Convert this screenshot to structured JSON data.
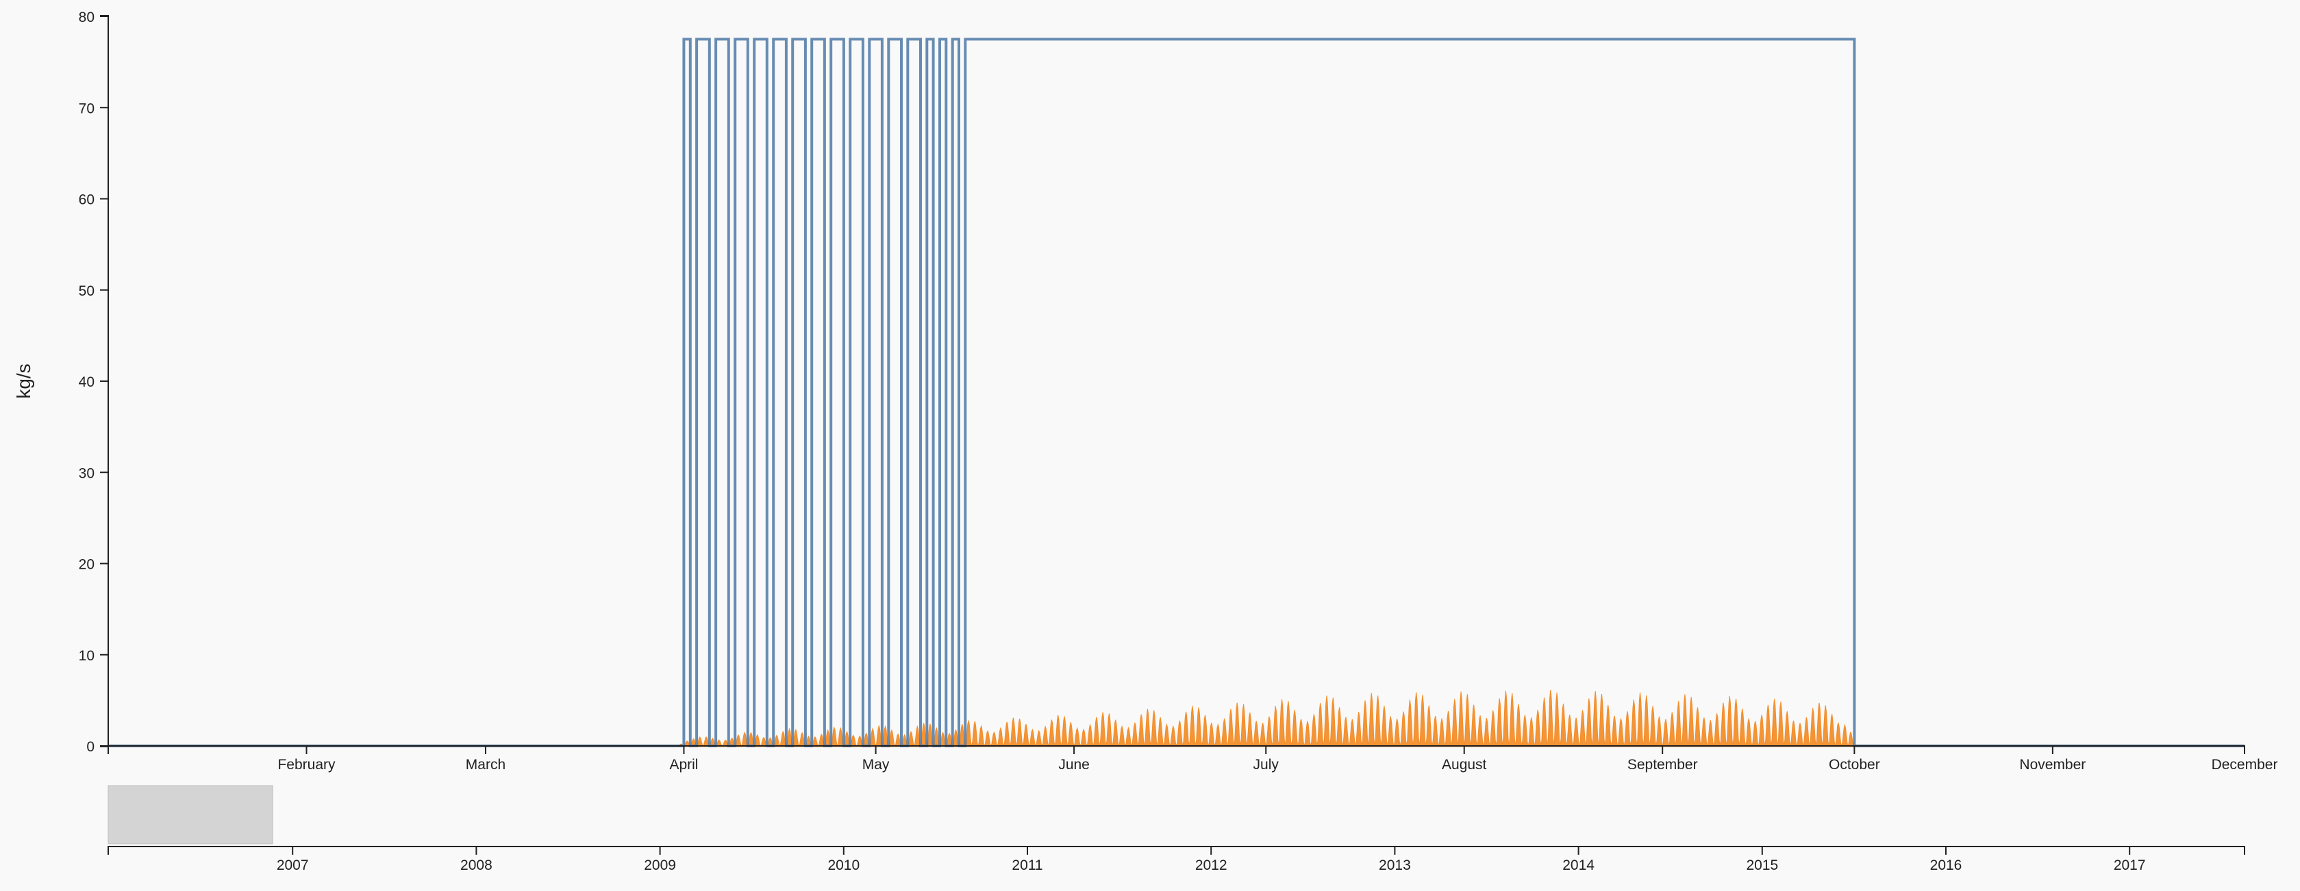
{
  "chart_data": {
    "type": "line",
    "title": "",
    "ylabel": "kg/s",
    "xlabel": "",
    "ylim": [
      0,
      80
    ],
    "y_ticks": [
      0,
      10,
      20,
      30,
      40,
      50,
      60,
      70,
      80
    ],
    "x_domain": [
      "2006-01-01",
      "2006-12-01"
    ],
    "x_ticks": [
      {
        "label": "February",
        "date": "2006-02-01"
      },
      {
        "label": "March",
        "date": "2006-03-01"
      },
      {
        "label": "April",
        "date": "2006-04-01"
      },
      {
        "label": "May",
        "date": "2006-05-01"
      },
      {
        "label": "June",
        "date": "2006-06-01"
      },
      {
        "label": "July",
        "date": "2006-07-01"
      },
      {
        "label": "August",
        "date": "2006-08-01"
      },
      {
        "label": "September",
        "date": "2006-09-01"
      },
      {
        "label": "October",
        "date": "2006-10-01"
      },
      {
        "label": "November",
        "date": "2006-11-01"
      },
      {
        "label": "December",
        "date": "2006-12-01"
      }
    ],
    "series": [
      {
        "color": "#4e79a7",
        "style": "step",
        "high_value": 77.5,
        "low_value": 0,
        "points": [
          [
            "2006-01-01",
            0
          ],
          [
            "2006-04-01",
            0
          ],
          [
            "2006-04-01",
            77.5
          ],
          [
            "2006-04-02",
            77.5
          ],
          [
            "2006-04-02",
            0
          ],
          [
            "2006-04-03",
            0
          ],
          [
            "2006-04-03",
            77.5
          ],
          [
            "2006-04-05",
            77.5
          ],
          [
            "2006-04-05",
            0
          ],
          [
            "2006-04-06",
            0
          ],
          [
            "2006-04-06",
            77.5
          ],
          [
            "2006-04-08",
            77.5
          ],
          [
            "2006-04-08",
            0
          ],
          [
            "2006-04-09",
            0
          ],
          [
            "2006-04-09",
            77.5
          ],
          [
            "2006-04-11",
            77.5
          ],
          [
            "2006-04-11",
            0
          ],
          [
            "2006-04-12",
            0
          ],
          [
            "2006-04-12",
            77.5
          ],
          [
            "2006-04-14",
            77.5
          ],
          [
            "2006-04-14",
            0
          ],
          [
            "2006-04-15",
            0
          ],
          [
            "2006-04-15",
            77.5
          ],
          [
            "2006-04-17",
            77.5
          ],
          [
            "2006-04-17",
            0
          ],
          [
            "2006-04-18",
            0
          ],
          [
            "2006-04-18",
            77.5
          ],
          [
            "2006-04-20",
            77.5
          ],
          [
            "2006-04-20",
            0
          ],
          [
            "2006-04-21",
            0
          ],
          [
            "2006-04-21",
            77.5
          ],
          [
            "2006-04-23",
            77.5
          ],
          [
            "2006-04-23",
            0
          ],
          [
            "2006-04-24",
            0
          ],
          [
            "2006-04-24",
            77.5
          ],
          [
            "2006-04-26",
            77.5
          ],
          [
            "2006-04-26",
            0
          ],
          [
            "2006-04-27",
            0
          ],
          [
            "2006-04-27",
            77.5
          ],
          [
            "2006-04-29",
            77.5
          ],
          [
            "2006-04-29",
            0
          ],
          [
            "2006-04-30",
            0
          ],
          [
            "2006-04-30",
            77.5
          ],
          [
            "2006-05-02",
            77.5
          ],
          [
            "2006-05-02",
            0
          ],
          [
            "2006-05-03",
            0
          ],
          [
            "2006-05-03",
            77.5
          ],
          [
            "2006-05-05",
            77.5
          ],
          [
            "2006-05-05",
            0
          ],
          [
            "2006-05-06",
            0
          ],
          [
            "2006-05-06",
            77.5
          ],
          [
            "2006-05-08",
            77.5
          ],
          [
            "2006-05-08",
            0
          ],
          [
            "2006-05-09",
            0
          ],
          [
            "2006-05-09",
            77.5
          ],
          [
            "2006-05-10",
            77.5
          ],
          [
            "2006-05-10",
            0
          ],
          [
            "2006-05-11",
            0
          ],
          [
            "2006-05-11",
            77.5
          ],
          [
            "2006-05-12",
            77.5
          ],
          [
            "2006-05-12",
            0
          ],
          [
            "2006-05-13",
            0
          ],
          [
            "2006-05-13",
            77.5
          ],
          [
            "2006-05-14",
            77.5
          ],
          [
            "2006-05-14",
            0
          ],
          [
            "2006-05-15",
            0
          ],
          [
            "2006-05-15",
            77.5
          ],
          [
            "2006-10-01",
            77.5
          ],
          [
            "2006-10-01",
            0
          ],
          [
            "2006-12-01",
            0
          ]
        ]
      },
      {
        "color": "#f28e2b",
        "style": "area",
        "amplitude_profile": [
          [
            "2006-01-01",
            0
          ],
          [
            "2006-03-31",
            0
          ],
          [
            "2006-04-01",
            0.8
          ],
          [
            "2006-04-15",
            1.8
          ],
          [
            "2006-05-01",
            2.2
          ],
          [
            "2006-05-15",
            2.8
          ],
          [
            "2006-06-01",
            3.5
          ],
          [
            "2006-06-15",
            4.2
          ],
          [
            "2006-07-01",
            5.0
          ],
          [
            "2006-07-15",
            5.8
          ],
          [
            "2006-08-01",
            6.0
          ],
          [
            "2006-08-15",
            6.2
          ],
          [
            "2006-09-01",
            5.8
          ],
          [
            "2006-09-15",
            5.4
          ],
          [
            "2006-09-30",
            4.5
          ],
          [
            "2006-10-01",
            0
          ],
          [
            "2006-12-01",
            0
          ]
        ]
      }
    ]
  },
  "brush_chart": {
    "x_ticks": [
      "2007",
      "2008",
      "2009",
      "2010",
      "2011",
      "2012",
      "2013",
      "2014",
      "2015",
      "2016",
      "2017"
    ],
    "selection_fraction": [
      0,
      0.077
    ]
  }
}
